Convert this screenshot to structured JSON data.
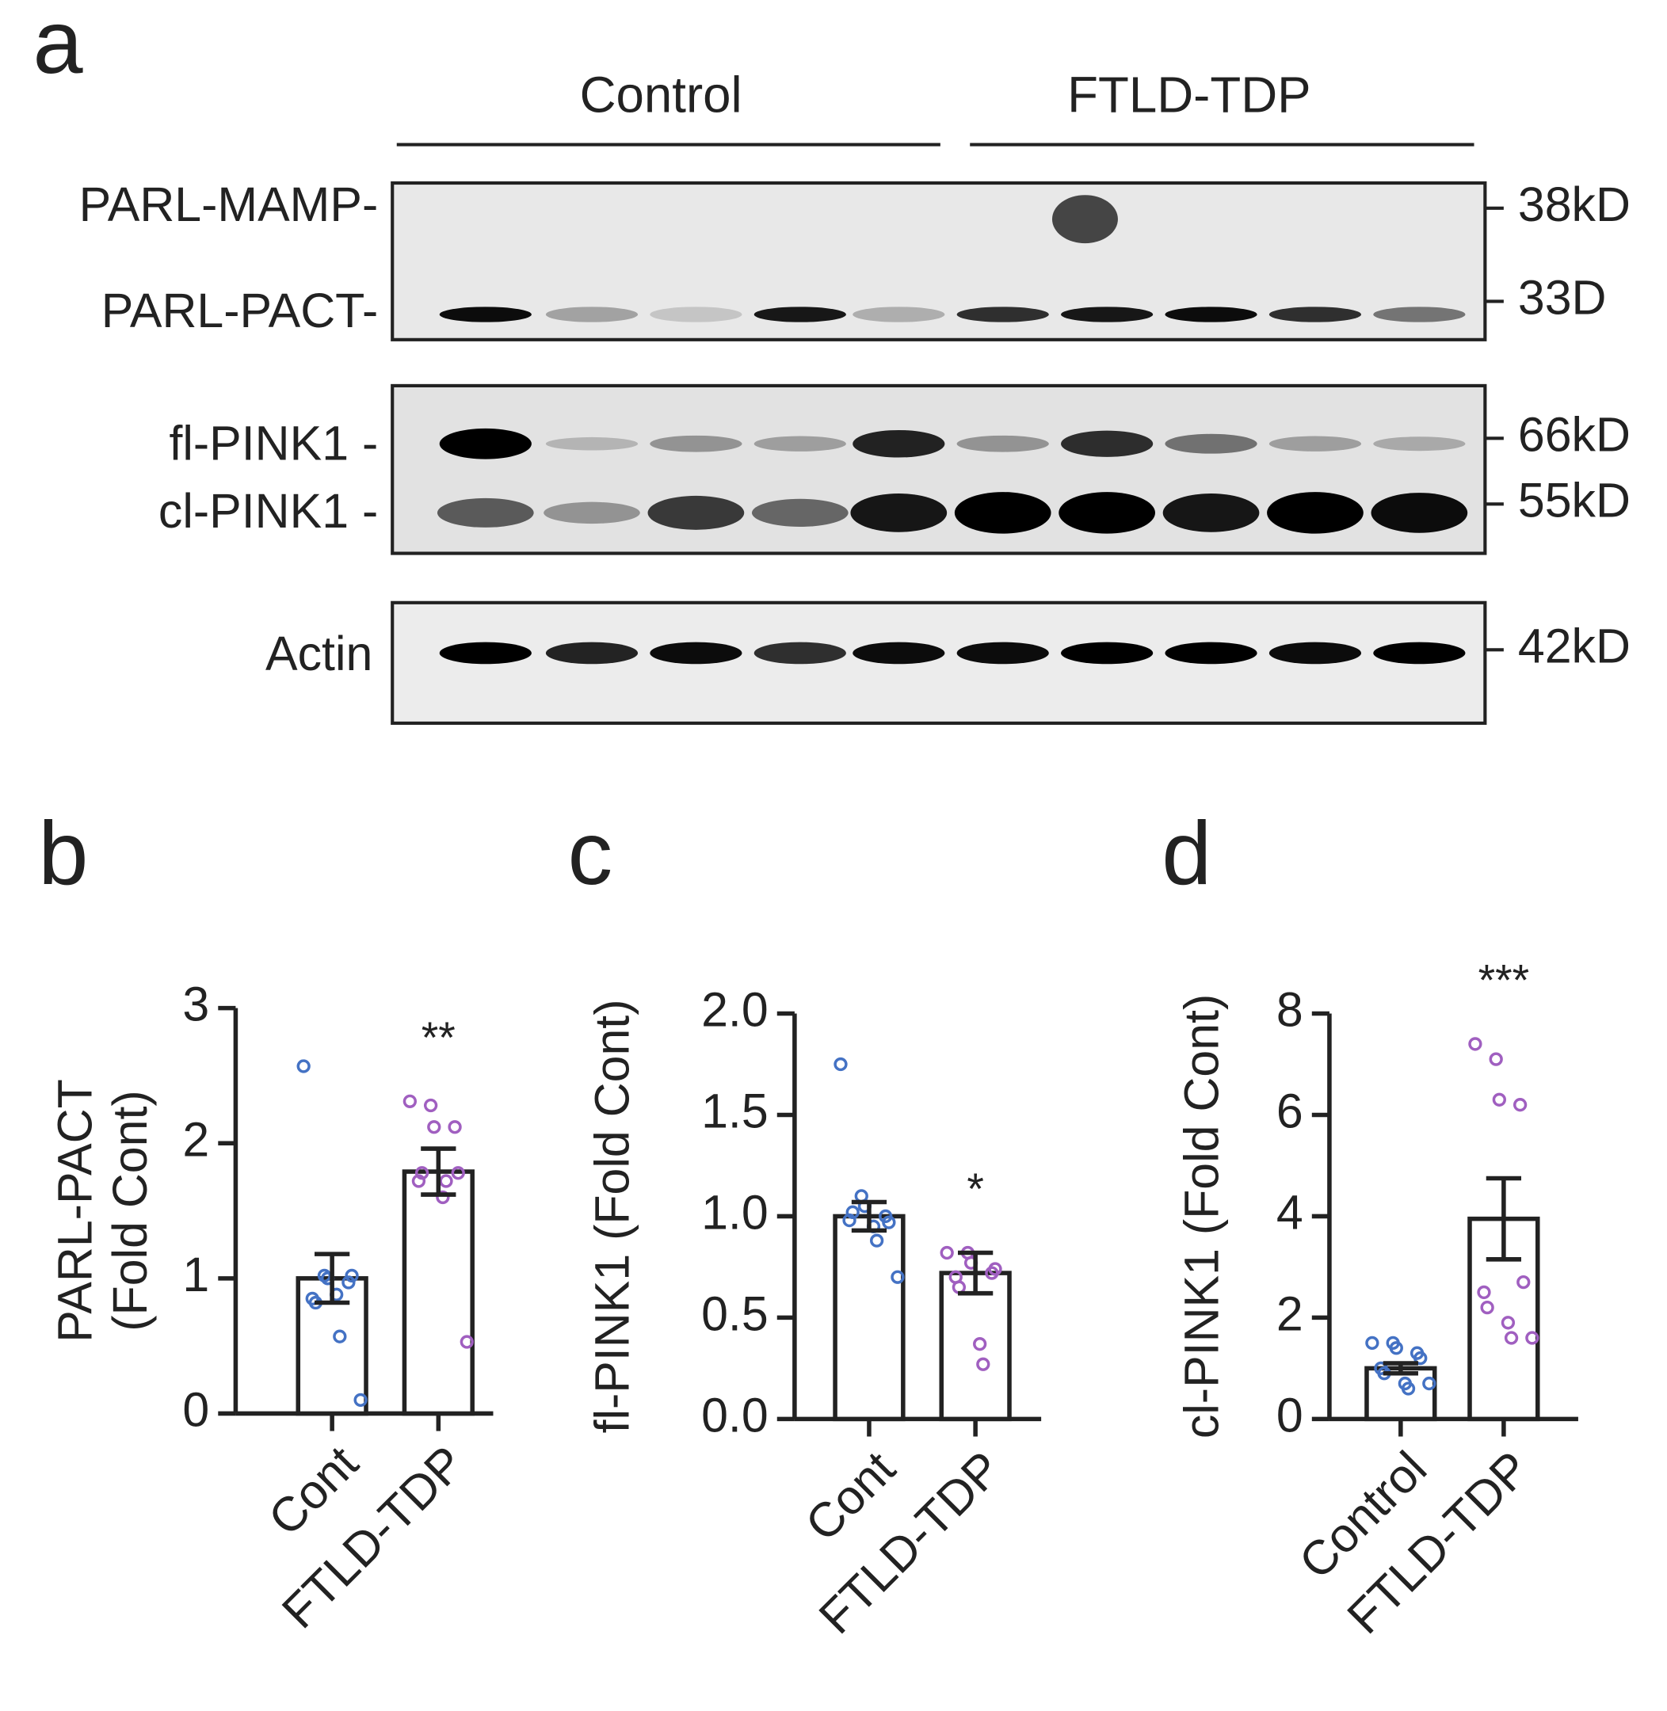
{
  "blot": {
    "panel": "a",
    "groups": [
      "Control",
      "FTLD-TDP"
    ],
    "rows": [
      {
        "labels": [
          "PARL-MAMP-",
          "PARL-PACT-"
        ],
        "markers": [
          "38kD",
          "33D"
        ]
      },
      {
        "labels": [
          "fl-PINK1 -",
          "cl-PINK1 -"
        ],
        "markers": [
          "66kD",
          "55kD"
        ]
      },
      {
        "labels": [
          "Actin"
        ],
        "markers": [
          "42kD"
        ]
      }
    ]
  },
  "chart_data": [
    {
      "type": "bar",
      "panel": "b",
      "ylabel": [
        "PARL-PACT",
        "(Fold Cont)"
      ],
      "categories": [
        "Cont",
        "FTLD-TDP"
      ],
      "values": [
        1.0,
        1.79
      ],
      "errors": [
        0.18,
        0.17
      ],
      "points": [
        [
          2.57,
          1.02,
          1.0,
          0.97,
          1.02,
          0.85,
          0.82,
          0.88,
          0.57,
          0.1
        ],
        [
          2.31,
          2.28,
          2.12,
          2.12,
          1.78,
          1.72,
          1.78,
          1.6,
          1.72,
          0.53
        ]
      ],
      "point_colors": [
        "#4472c4",
        "#a05fc0"
      ],
      "significance": "**",
      "ylim": [
        0,
        3
      ],
      "yticks": [
        0,
        1,
        2,
        3
      ]
    },
    {
      "type": "bar",
      "panel": "c",
      "ylabel": [
        "fl-PINK1 (Fold Cont)"
      ],
      "categories": [
        "Cont",
        "FTLD-TDP"
      ],
      "values": [
        1.0,
        0.72
      ],
      "errors": [
        0.07,
        0.1
      ],
      "points": [
        [
          1.75,
          1.1,
          1.05,
          1.0,
          0.97,
          0.98,
          1.02,
          0.95,
          0.88,
          0.7
        ],
        [
          0.82,
          0.82,
          0.77,
          0.72,
          0.74,
          0.7,
          0.65,
          0.37,
          0.27
        ]
      ],
      "point_colors": [
        "#4472c4",
        "#a05fc0"
      ],
      "significance": "*",
      "ylim": [
        0,
        2
      ],
      "yticks": [
        {
          "value": 0,
          "label": "0.0"
        },
        {
          "value": 0.5,
          "label": "0.5"
        },
        {
          "value": 1,
          "label": "1.0"
        },
        {
          "value": 1.5,
          "label": "1.5"
        },
        {
          "value": 2,
          "label": "2.0"
        }
      ]
    },
    {
      "type": "bar",
      "panel": "d",
      "ylabel": [
        "cl-PINK1 (Fold Cont)"
      ],
      "categories": [
        "Control",
        "FTLD-TDP"
      ],
      "values": [
        1.0,
        3.95
      ],
      "errors": [
        0.1,
        0.8
      ],
      "points": [
        [
          1.5,
          1.5,
          1.4,
          1.3,
          1.2,
          1.0,
          0.9,
          0.7,
          0.6,
          0.7
        ],
        [
          7.4,
          7.1,
          6.3,
          6.2,
          2.7,
          2.5,
          2.2,
          1.9,
          1.6,
          1.6
        ]
      ],
      "point_colors": [
        "#4472c4",
        "#a05fc0"
      ],
      "significance": "***",
      "ylim": [
        0,
        8
      ],
      "yticks": [
        0,
        2,
        4,
        6,
        8
      ]
    }
  ]
}
